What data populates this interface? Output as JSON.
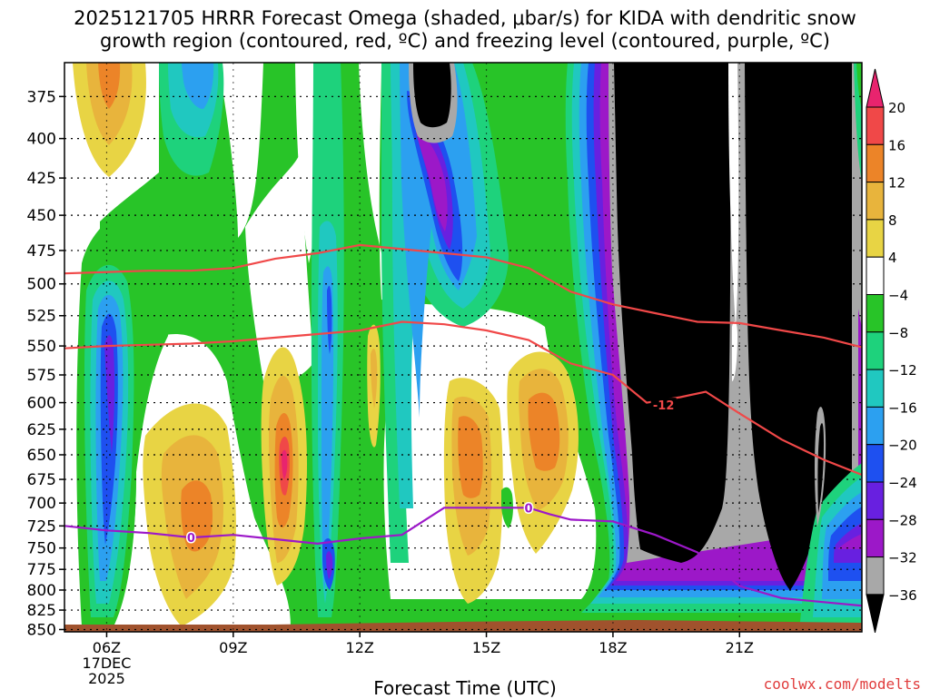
{
  "title": {
    "line1": "2025121705 HRRR Forecast Omega (shaded, μbar/s) for KIDA with dendritic snow",
    "line2": "growth region (contoured, red, ºC) and freezing level (contoured, purple, ºC)"
  },
  "credit": "coolwx.com/modelts",
  "chart_data": {
    "type": "heatmap",
    "xlabel": "Forecast Time (UTC)",
    "x_ticks": [
      {
        "label": "06Z",
        "hour": 6
      },
      {
        "label": "09Z",
        "hour": 9
      },
      {
        "label": "12Z",
        "hour": 12
      },
      {
        "label": "15Z",
        "hour": 15
      },
      {
        "label": "18Z",
        "hour": 18
      },
      {
        "label": "21Z",
        "hour": 21
      }
    ],
    "date_label": [
      "17DEC",
      "2025"
    ],
    "xlim": [
      5.0,
      23.9
    ],
    "y_ticks": [
      375,
      400,
      425,
      450,
      475,
      500,
      525,
      550,
      575,
      600,
      625,
      650,
      675,
      700,
      725,
      750,
      775,
      800,
      825,
      850
    ],
    "ylim": [
      356,
      853
    ],
    "y_scale": "log-pressure",
    "grid": true,
    "colorbar": {
      "levels": [
        20,
        16,
        12,
        8,
        4,
        -4,
        -8,
        -12,
        -16,
        -20,
        -24,
        -28,
        -32,
        -36
      ],
      "colors": [
        "#e8246e",
        "#f04848",
        "#ec8428",
        "#e8b43c",
        "#e8d444",
        "#ffffff",
        "#28c428",
        "#1ed27c",
        "#20c8c0",
        "#2ca0f0",
        "#1e50f0",
        "#6820e0",
        "#9c18c8",
        "#a8a8a8",
        "#000000"
      ]
    },
    "dendritic_contours": [
      {
        "label": "",
        "points": [
          [
            5.0,
            492
          ],
          [
            7.0,
            490
          ],
          [
            8.0,
            490
          ],
          [
            9.0,
            488
          ],
          [
            10.0,
            481
          ],
          [
            11.0,
            477
          ],
          [
            12.0,
            471
          ],
          [
            13.0,
            474
          ],
          [
            14.0,
            477
          ],
          [
            15.0,
            480
          ],
          [
            16.0,
            488
          ],
          [
            17.0,
            506
          ],
          [
            18.0,
            516
          ],
          [
            19.0,
            523
          ],
          [
            20.0,
            530
          ],
          [
            21.0,
            531
          ],
          [
            22.0,
            537
          ],
          [
            23.0,
            543
          ],
          [
            24.0,
            552
          ]
        ]
      },
      {
        "label": "-12",
        "points": [
          [
            5.0,
            552
          ],
          [
            6.0,
            550
          ],
          [
            7.0,
            549
          ],
          [
            8.0,
            548
          ],
          [
            9.0,
            546
          ],
          [
            10.0,
            543
          ],
          [
            11.0,
            540
          ],
          [
            12.0,
            537
          ],
          [
            13.0,
            530
          ],
          [
            14.0,
            532
          ],
          [
            15.0,
            537
          ],
          [
            16.0,
            545
          ],
          [
            17.0,
            565
          ],
          [
            18.0,
            575
          ],
          [
            18.8,
            600
          ],
          [
            19.6,
            595
          ],
          [
            20.2,
            590
          ],
          [
            21.0,
            610
          ],
          [
            22.0,
            635
          ],
          [
            23.0,
            655
          ],
          [
            24.0,
            672
          ]
        ],
        "label_at": [
          19.2,
          603
        ]
      }
    ],
    "freezing_contour": {
      "label": "0",
      "points": [
        [
          5.0,
          725
        ],
        [
          6.0,
          730
        ],
        [
          7.0,
          733
        ],
        [
          8.0,
          738
        ],
        [
          9.0,
          735
        ],
        [
          10.0,
          740
        ],
        [
          11.0,
          745
        ],
        [
          12.0,
          739
        ],
        [
          13.0,
          735
        ],
        [
          14.0,
          705
        ],
        [
          15.0,
          705
        ],
        [
          16.0,
          705
        ],
        [
          16.5,
          712
        ],
        [
          17.0,
          718
        ],
        [
          18.0,
          720
        ],
        [
          19.0,
          735
        ],
        [
          20.0,
          755
        ],
        [
          21.0,
          795
        ],
        [
          22.0,
          810
        ],
        [
          23.0,
          815
        ],
        [
          24.0,
          820
        ]
      ],
      "label_at": [
        [
          8.0,
          738
        ],
        [
          16.0,
          705
        ]
      ]
    }
  }
}
